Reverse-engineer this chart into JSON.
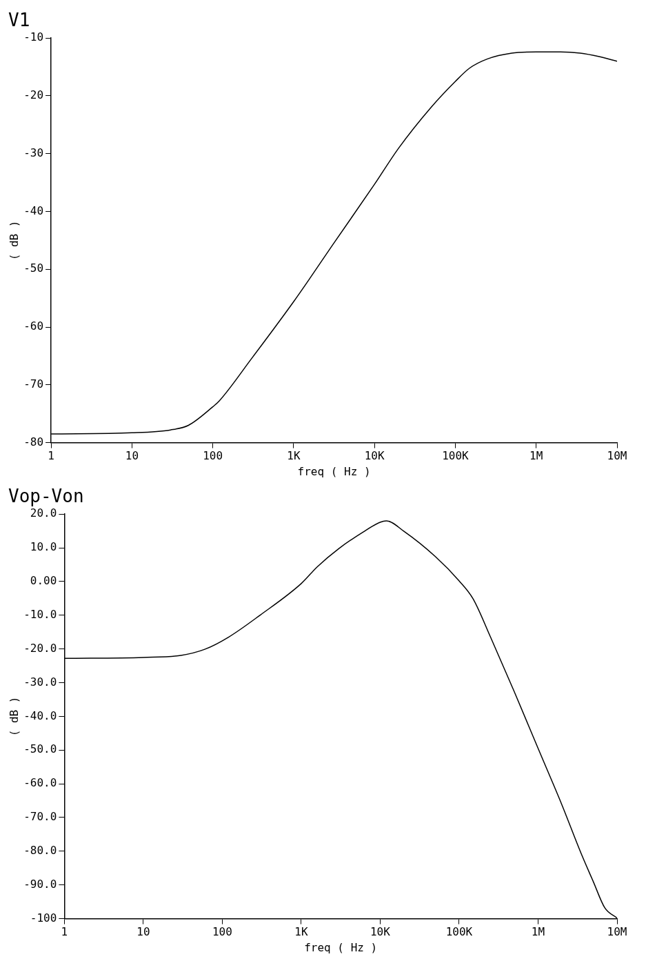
{
  "chart_data": [
    {
      "type": "line",
      "title": "V1",
      "xlabel": "freq ( Hz )",
      "ylabel": "( dB )",
      "log": "x",
      "color": "#000000",
      "x": [
        1,
        10,
        30,
        50,
        100,
        120,
        300,
        1000,
        1600,
        3000,
        10000,
        20000,
        50000,
        100000,
        150000,
        250000,
        500000,
        1000000,
        2000000,
        3500000,
        6000000,
        10000000
      ],
      "values": [
        -78.5,
        -78.3,
        -77.8,
        -77,
        -73.8,
        -72.8,
        -65.5,
        -55.6,
        -51.5,
        -45.9,
        -35.3,
        -29,
        -22,
        -17.5,
        -15.2,
        -13.6,
        -12.6,
        -12.4,
        -12.4,
        -12.6,
        -13.2,
        -14
      ],
      "xlim": [
        1,
        10000000
      ],
      "xticks": [
        1,
        10,
        100,
        {
          "value": 1000,
          "label": "1K"
        },
        {
          "value": 10000,
          "label": "10K"
        },
        {
          "value": 100000,
          "label": "100K"
        },
        {
          "value": 1000000,
          "label": "1M"
        },
        {
          "value": 10000000,
          "label": "10M"
        }
      ],
      "ylim": [
        -80,
        -10
      ],
      "yticks": [
        -80,
        -70,
        -60,
        -50,
        -40,
        -30,
        -20,
        -10
      ]
    },
    {
      "type": "line",
      "title": "Vop-Von",
      "xlabel": "freq ( Hz )",
      "ylabel": "( dB )",
      "log": "x",
      "color": "#000000",
      "x": [
        1,
        10,
        30,
        60,
        120,
        300,
        1000,
        1600,
        3000,
        6000,
        10000,
        12000,
        20000,
        50000,
        100000,
        150000,
        250000,
        500000,
        1000000,
        2000000,
        3500000,
        5000000,
        7000000,
        10000000
      ],
      "values": [
        -22.8,
        -22.5,
        -21.9,
        -20.1,
        -16.5,
        -10,
        -0.6,
        4.4,
        9.8,
        14.6,
        17.6,
        18,
        14.9,
        7.4,
        0.2,
        -5.1,
        -16.5,
        -32.7,
        -49.5,
        -66.2,
        -80.6,
        -89,
        -96.8,
        -99.8
      ],
      "xlim": [
        1,
        10000000
      ],
      "xticks": [
        1,
        10,
        100,
        {
          "value": 1000,
          "label": "1K"
        },
        {
          "value": 10000,
          "label": "10K"
        },
        {
          "value": 100000,
          "label": "100K"
        },
        {
          "value": 1000000,
          "label": "1M"
        },
        {
          "value": 10000000,
          "label": "10M"
        }
      ],
      "ylim": [
        -100,
        20
      ],
      "yticks": [
        {
          "value": -100,
          "label": "-100"
        },
        {
          "value": -90,
          "label": "-90.0"
        },
        {
          "value": -80,
          "label": "-80.0"
        },
        {
          "value": -70,
          "label": "-70.0"
        },
        {
          "value": -60,
          "label": "-60.0"
        },
        {
          "value": -50,
          "label": "-50.0"
        },
        {
          "value": -40,
          "label": "-40.0"
        },
        {
          "value": -30,
          "label": "-30.0"
        },
        {
          "value": -20,
          "label": "-20.0"
        },
        {
          "value": -10,
          "label": "-10.0"
        },
        {
          "value": 0,
          "label": "0.00"
        },
        {
          "value": 10,
          "label": "10.0"
        },
        {
          "value": 20,
          "label": "20.0"
        }
      ]
    }
  ]
}
